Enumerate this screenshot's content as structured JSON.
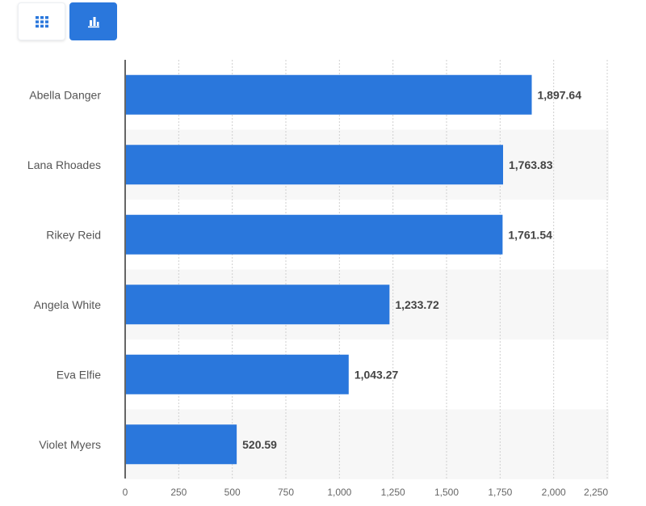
{
  "toolbar": {
    "buttons": [
      {
        "icon": "table-grid-icon",
        "active": false
      },
      {
        "icon": "bar-chart-icon",
        "active": true
      }
    ]
  },
  "colors": {
    "bar": "#2a77dc",
    "accent": "#2a77dc",
    "grid": "#cfcfcf",
    "band": "#f7f7f7"
  },
  "chart_data": {
    "type": "bar",
    "orientation": "horizontal",
    "categories": [
      "Abella Danger",
      "Lana Rhoades",
      "Rikey Reid",
      "Angela White",
      "Eva Elfie",
      "Violet Myers"
    ],
    "values": [
      1897.64,
      1763.83,
      1761.54,
      1233.72,
      1043.27,
      520.59
    ],
    "value_labels": [
      "1,897.64",
      "1,763.83",
      "1,761.54",
      "1,233.72",
      "1,043.27",
      "520.59"
    ],
    "xlim": [
      0,
      2250
    ],
    "ticks": [
      0,
      250,
      500,
      750,
      1000,
      1250,
      1500,
      1750,
      2000,
      2250
    ],
    "tick_labels": [
      "0",
      "250",
      "500",
      "750",
      "1,000",
      "1,250",
      "1,500",
      "1,750",
      "2,000",
      "2,250"
    ],
    "title": "",
    "xlabel": "",
    "ylabel": "",
    "grid": true,
    "legend": "none"
  }
}
